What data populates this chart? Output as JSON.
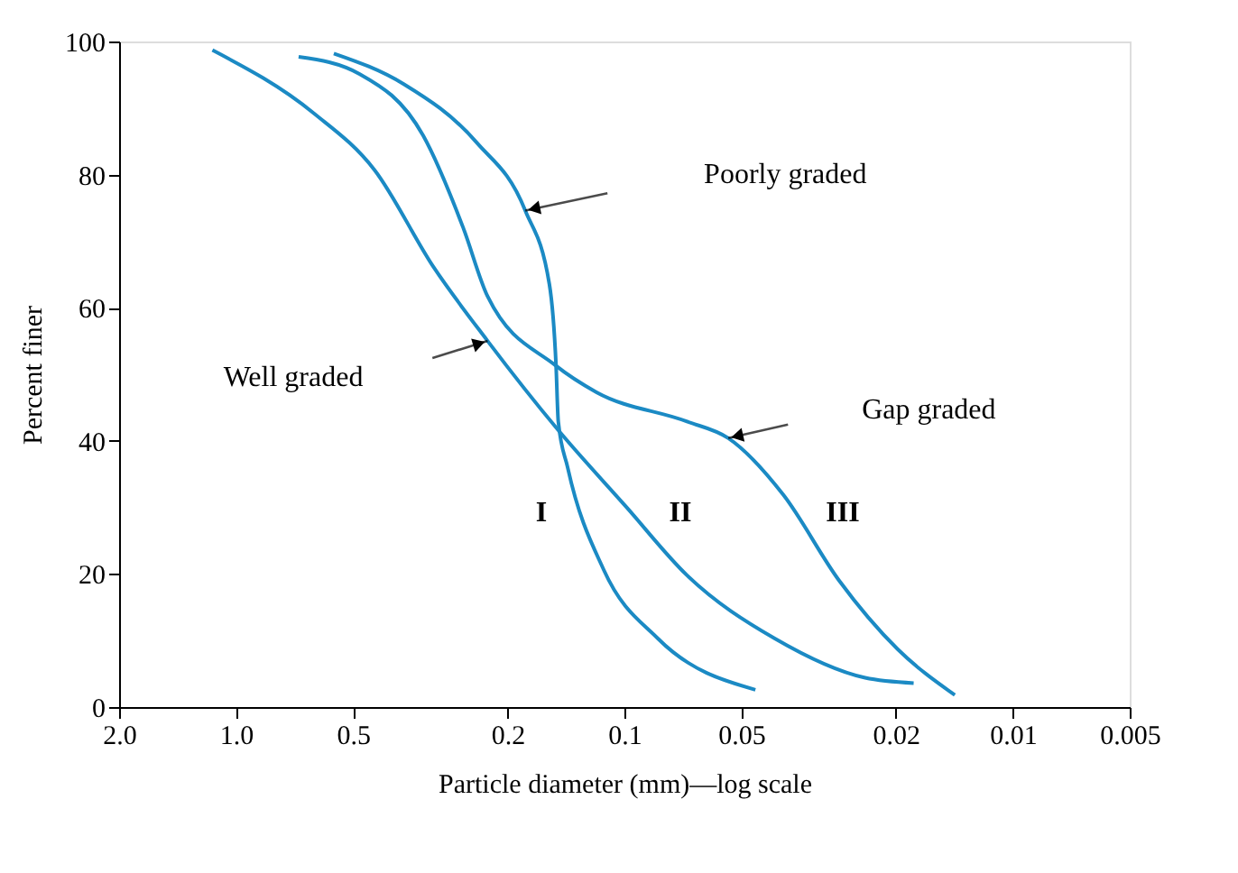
{
  "chart_data": {
    "type": "line",
    "xlabel": "Particle diameter (mm)—log scale",
    "ylabel": "Percent finer",
    "log": "x",
    "grid": false,
    "marker": "none",
    "line_style": "solid",
    "xlim": [
      2.0,
      0.005
    ],
    "ylim": [
      0,
      100
    ],
    "xticks": [
      {
        "value": 2.0,
        "label": "2.0"
      },
      {
        "value": 1.0,
        "label": "1.0"
      },
      0.5,
      0.2,
      0.1,
      0.05,
      0.02,
      0.01,
      0.005
    ],
    "yticks": [
      0,
      20,
      40,
      60,
      80,
      100
    ],
    "series": [
      {
        "color": "#1b8ac4",
        "x": [
          1.15,
          0.63,
          0.44,
          0.31,
          0.225,
          0.148,
          0.099,
          0.069,
          0.041,
          0.024,
          0.018
        ],
        "values": [
          98.7,
          89.2,
          80.7,
          66.1,
          55.0,
          41.6,
          30.1,
          19.8,
          10.3,
          4.4,
          3.6
        ]
      },
      {
        "color": "#1b8ac4",
        "x": [
          0.69,
          0.48,
          0.33,
          0.26,
          0.225,
          0.151,
          0.118,
          0.069,
          0.054,
          0.039,
          0.028,
          0.0198,
          0.0141
        ],
        "values": [
          97.7,
          95.1,
          85.9,
          72.0,
          61.7,
          51.4,
          47.3,
          42.9,
          40.4,
          31.9,
          19.0,
          8.7,
          1.8
        ]
      },
      {
        "color": "#1b8ac4",
        "x": [
          0.56,
          0.37,
          0.24,
          0.18,
          0.156,
          0.15,
          0.148,
          0.14,
          0.113,
          0.082,
          0.046
        ],
        "values": [
          98.2,
          93.6,
          84.8,
          74.6,
          63.5,
          51.4,
          42.9,
          36.0,
          20.6,
          10.3,
          2.6
        ]
      }
    ],
    "annotations": [
      "Poorly graded",
      "Well graded",
      "Gap graded",
      "I",
      "II",
      "III"
    ]
  }
}
